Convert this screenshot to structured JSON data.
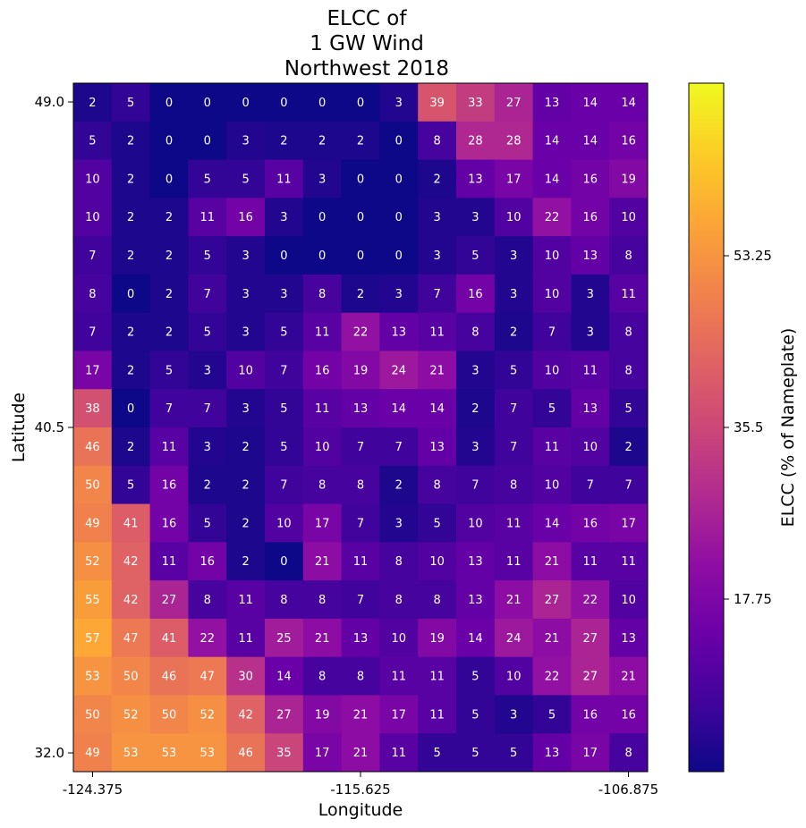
{
  "chart_data": {
    "type": "heatmap",
    "title": [
      "ELCC of",
      "1 GW Wind",
      "Northwest 2018"
    ],
    "xlabel": "Longitude",
    "ylabel": "Latitude",
    "x_ticks": [
      "-124.375",
      "-115.625",
      "-106.875"
    ],
    "y_ticks": [
      "49.0",
      "40.5",
      "32.0"
    ],
    "colorbar": {
      "label": "ELCC (% of Nameplate)",
      "ticks": [
        "17.75",
        "35.5",
        "53.25"
      ],
      "vmin": 0,
      "vmax": 71,
      "colormap": "plasma"
    },
    "rows": [
      [
        2,
        5,
        0,
        0,
        0,
        0,
        0,
        0,
        3,
        39,
        33,
        27,
        13,
        14,
        14
      ],
      [
        5,
        2,
        0,
        0,
        3,
        2,
        2,
        2,
        0,
        8,
        28,
        28,
        14,
        14,
        16
      ],
      [
        10,
        2,
        0,
        5,
        5,
        11,
        3,
        0,
        0,
        2,
        13,
        17,
        14,
        16,
        19
      ],
      [
        10,
        2,
        2,
        11,
        16,
        3,
        0,
        0,
        0,
        3,
        3,
        10,
        22,
        16,
        10
      ],
      [
        7,
        2,
        2,
        5,
        3,
        0,
        0,
        0,
        0,
        3,
        5,
        3,
        10,
        13,
        8
      ],
      [
        8,
        0,
        2,
        7,
        3,
        3,
        8,
        2,
        3,
        7,
        16,
        3,
        10,
        3,
        11
      ],
      [
        7,
        2,
        2,
        5,
        3,
        5,
        11,
        22,
        13,
        11,
        8,
        2,
        7,
        3,
        8
      ],
      [
        17,
        2,
        5,
        3,
        10,
        7,
        16,
        19,
        24,
        21,
        3,
        5,
        10,
        11,
        8
      ],
      [
        38,
        0,
        7,
        7,
        3,
        5,
        11,
        13,
        14,
        14,
        2,
        7,
        5,
        13,
        5
      ],
      [
        46,
        2,
        11,
        3,
        2,
        5,
        10,
        7,
        7,
        13,
        3,
        7,
        11,
        10,
        2
      ],
      [
        50,
        5,
        16,
        2,
        2,
        7,
        8,
        8,
        2,
        8,
        7,
        8,
        10,
        7,
        7
      ],
      [
        49,
        41,
        16,
        5,
        2,
        10,
        17,
        7,
        3,
        5,
        10,
        11,
        14,
        16,
        17
      ],
      [
        52,
        42,
        11,
        16,
        2,
        0,
        21,
        11,
        8,
        10,
        13,
        11,
        21,
        11,
        11
      ],
      [
        55,
        42,
        27,
        8,
        11,
        8,
        8,
        7,
        8,
        8,
        13,
        21,
        27,
        22,
        10
      ],
      [
        57,
        47,
        41,
        22,
        11,
        25,
        21,
        13,
        10,
        19,
        14,
        24,
        21,
        27,
        13
      ],
      [
        53,
        50,
        46,
        47,
        30,
        14,
        8,
        8,
        11,
        11,
        5,
        10,
        22,
        27,
        21
      ],
      [
        50,
        52,
        50,
        52,
        42,
        27,
        19,
        21,
        17,
        11,
        5,
        3,
        5,
        16,
        16
      ],
      [
        49,
        53,
        53,
        53,
        46,
        35,
        17,
        21,
        11,
        5,
        5,
        5,
        13,
        17,
        8
      ]
    ]
  }
}
